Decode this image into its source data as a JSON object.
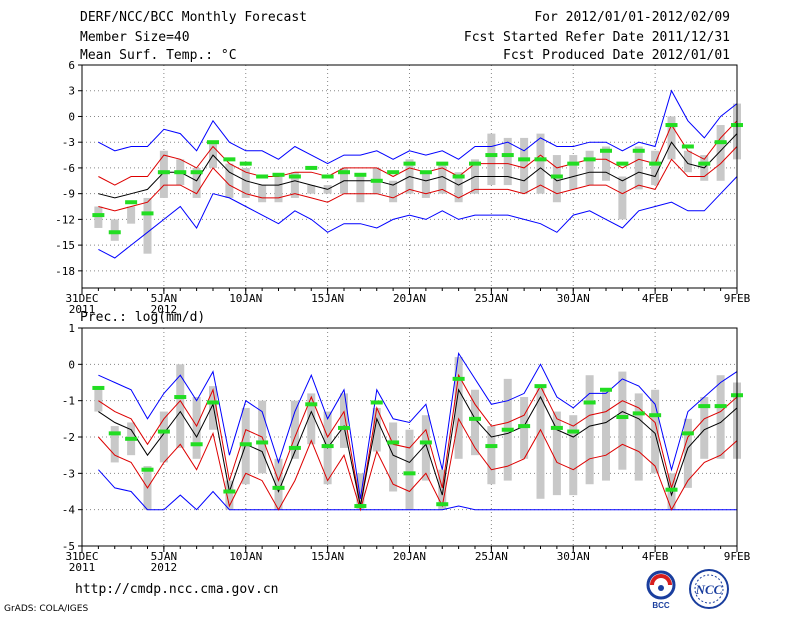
{
  "header": {
    "title": "DERF/NCC/BCC Monthly Forecast",
    "member_size": "Member Size=40",
    "for_range": "For 2012/01/01-2012/02/09",
    "started": "Fcst Started Refer Date 2011/12/31",
    "produced": "Fcst Produced Date 2012/01/01"
  },
  "footer": {
    "url": "http://cmdp.ncc.cma.gov.cn",
    "credit": "GrADS: COLA/IGES",
    "logo_left_text": "BCC",
    "logo_right_text": "NCC"
  },
  "colors": {
    "envelope": "#0000ff",
    "ensemble": "#dd0000",
    "mean": "#000000",
    "observed": "#22dd22",
    "bar": "#c8c8c8",
    "grid": "#888888"
  },
  "chart_data": [
    {
      "type": "line",
      "title": "Mean Surf. Temp.: °C",
      "ylim": [
        -20,
        6
      ],
      "yticks": [
        6,
        3,
        0,
        -3,
        -6,
        -9,
        -12,
        -15,
        -18
      ],
      "xticks": [
        {
          "day": 0,
          "label": "31DEC",
          "label2": "2011"
        },
        {
          "day": 5,
          "label": "5JAN",
          "label2": "2012"
        },
        {
          "day": 10,
          "label": "10JAN",
          "label2": ""
        },
        {
          "day": 15,
          "label": "15JAN",
          "label2": ""
        },
        {
          "day": 20,
          "label": "20JAN",
          "label2": ""
        },
        {
          "day": 25,
          "label": "25JAN",
          "label2": ""
        },
        {
          "day": 30,
          "label": "30JAN",
          "label2": ""
        },
        {
          "day": 35,
          "label": "4FEB",
          "label2": ""
        },
        {
          "day": 40,
          "label": "9FEB",
          "label2": ""
        }
      ],
      "days": [
        1,
        2,
        3,
        4,
        5,
        6,
        7,
        8,
        9,
        10,
        11,
        12,
        13,
        14,
        15,
        16,
        17,
        18,
        19,
        20,
        21,
        22,
        23,
        24,
        25,
        26,
        27,
        28,
        29,
        30,
        31,
        32,
        33,
        34,
        35,
        36,
        37,
        38,
        39,
        40
      ],
      "upper": [
        -3,
        -4,
        -3.5,
        -3.5,
        -1.5,
        -2,
        -4,
        -0.5,
        -3,
        -4,
        -4,
        -5,
        -3.5,
        -4.5,
        -5.5,
        -4.5,
        -4.5,
        -4,
        -5,
        -4,
        -4.5,
        -4,
        -5,
        -3.5,
        -3.5,
        -3,
        -4,
        -2.5,
        -3.5,
        -3.5,
        -3,
        -3,
        -4,
        -3,
        -3.5,
        3,
        -0.5,
        -2.5,
        0,
        1.5
      ],
      "lower": [
        -15.5,
        -16.5,
        -15,
        -13.5,
        -12,
        -10.5,
        -13,
        -9,
        -9.5,
        -10.5,
        -11.5,
        -12.5,
        -11,
        -12,
        -13.5,
        -12.5,
        -12.5,
        -13,
        -12,
        -11.5,
        -12,
        -11,
        -12,
        -11.5,
        -11.5,
        -11.5,
        -12,
        -12.5,
        -13.5,
        -11.5,
        -11,
        -12,
        -13,
        -11,
        -10.5,
        -10,
        -11,
        -11,
        -9,
        -7
      ],
      "ens_upper": [
        -7,
        -8,
        -7,
        -7,
        -4.5,
        -5,
        -6,
        -3.5,
        -5.5,
        -6.5,
        -7,
        -7,
        -6.5,
        -6.5,
        -7,
        -6,
        -6,
        -6,
        -7,
        -6,
        -6.5,
        -6,
        -7,
        -5.5,
        -5.5,
        -5.5,
        -6,
        -4.5,
        -6,
        -5.5,
        -5,
        -5,
        -6,
        -5,
        -5.5,
        -1,
        -4,
        -5,
        -2.5,
        -0.5
      ],
      "ens_lower": [
        -10.5,
        -11,
        -10.5,
        -10,
        -8,
        -8,
        -9,
        -6,
        -8,
        -9,
        -9.5,
        -9.5,
        -9,
        -9.5,
        -10,
        -9,
        -9,
        -9,
        -9.5,
        -8.5,
        -9,
        -8.5,
        -9.5,
        -8.5,
        -8.5,
        -8.5,
        -9,
        -8,
        -9,
        -8.5,
        -8,
        -8,
        -9,
        -8,
        -8.5,
        -5,
        -7,
        -7,
        -5.5,
        -3.5
      ],
      "mean": [
        -9,
        -9.5,
        -9,
        -8.5,
        -6.5,
        -6.5,
        -7.5,
        -4.5,
        -6.5,
        -7.5,
        -8,
        -8,
        -7.5,
        -8,
        -8.5,
        -7.5,
        -7.5,
        -7.5,
        -8,
        -7,
        -7.5,
        -7,
        -8,
        -7,
        -7,
        -7,
        -7.5,
        -6,
        -7.5,
        -7,
        -6.5,
        -6.5,
        -7.5,
        -6.5,
        -7,
        -3,
        -5.5,
        -6,
        -4,
        -2
      ],
      "bar_top": [
        -10.5,
        -12,
        -10.5,
        -9.5,
        -4,
        -5,
        -6,
        -3,
        -5.5,
        -6,
        -8,
        -7,
        -6.5,
        -8,
        -8,
        -6,
        -7,
        -6,
        -7.5,
        -5,
        -6.5,
        -5.5,
        -6.5,
        -5,
        -2,
        -2.5,
        -2.5,
        -2,
        -4.5,
        -4.5,
        -4,
        -3.5,
        -7,
        -3.5,
        -4,
        0,
        -4,
        -4.5,
        -1,
        1.5
      ],
      "bar_bottom": [
        -13,
        -14.5,
        -12.5,
        -16,
        -9.5,
        -8,
        -9.5,
        -6,
        -9.5,
        -9.5,
        -10,
        -10,
        -9.5,
        -9,
        -9,
        -9,
        -10,
        -9,
        -10,
        -9,
        -9.5,
        -9,
        -10,
        -9,
        -8,
        -8,
        -9,
        -9,
        -10,
        -8.5,
        -8,
        -7.5,
        -12,
        -8.5,
        -8,
        -5,
        -6.5,
        -7.5,
        -7.5,
        -5
      ],
      "observed": [
        -11.5,
        -13.5,
        -10,
        -11.3,
        -6.5,
        -6.5,
        -6.5,
        -3,
        -5,
        -5.5,
        -7,
        -6.8,
        -7,
        -6,
        -7,
        -6.5,
        -6.8,
        -7.5,
        -6.5,
        -5.5,
        -6.5,
        -5.5,
        -7,
        -5.5,
        -4.5,
        -4.5,
        -5,
        -5,
        -7,
        -5.5,
        -5,
        -4,
        -5.5,
        -4,
        -5.5,
        -1,
        -3.5,
        -5.5,
        -3,
        -1
      ]
    },
    {
      "type": "line",
      "title": "Prec.: log(mm/d)",
      "ylim": [
        -5,
        1
      ],
      "yticks": [
        1,
        0,
        -1,
        -2,
        -3,
        -4,
        -5
      ],
      "xticks": [
        {
          "day": 0,
          "label": "31DEC",
          "label2": "2011"
        },
        {
          "day": 5,
          "label": "5JAN",
          "label2": "2012"
        },
        {
          "day": 10,
          "label": "10JAN",
          "label2": ""
        },
        {
          "day": 15,
          "label": "15JAN",
          "label2": ""
        },
        {
          "day": 20,
          "label": "20JAN",
          "label2": ""
        },
        {
          "day": 25,
          "label": "25JAN",
          "label2": ""
        },
        {
          "day": 30,
          "label": "30JAN",
          "label2": ""
        },
        {
          "day": 35,
          "label": "4FEB",
          "label2": ""
        },
        {
          "day": 40,
          "label": "9FEB",
          "label2": ""
        }
      ],
      "days": [
        1,
        2,
        3,
        4,
        5,
        6,
        7,
        8,
        9,
        10,
        11,
        12,
        13,
        14,
        15,
        16,
        17,
        18,
        19,
        20,
        21,
        22,
        23,
        24,
        25,
        26,
        27,
        28,
        29,
        30,
        31,
        32,
        33,
        34,
        35,
        36,
        37,
        38,
        39,
        40
      ],
      "upper": [
        -0.3,
        -0.5,
        -0.7,
        -1.5,
        -0.8,
        -0.3,
        -1,
        -0.2,
        -2.5,
        -1,
        -1.3,
        -2.7,
        -1.3,
        -0.3,
        -1.5,
        -0.7,
        -3.7,
        -0.7,
        -1.5,
        -1.6,
        -1.1,
        -2.9,
        0.3,
        -0.4,
        -1.1,
        -1,
        -0.8,
        0,
        -0.9,
        -1.2,
        -0.8,
        -0.8,
        -0.4,
        -0.6,
        -1.1,
        -2.9,
        -1.3,
        -0.9,
        -0.5,
        -0.2
      ],
      "lower": [
        -2.9,
        -3.4,
        -3.5,
        -4,
        -4,
        -3.6,
        -4,
        -3.5,
        -4,
        -4,
        -4,
        -4,
        -4,
        -4,
        -4,
        -4,
        -4,
        -4,
        -4,
        -4,
        -4,
        -4,
        -3.9,
        -4,
        -4,
        -4,
        -4,
        -4,
        -4,
        -4,
        -4,
        -4,
        -4,
        -4,
        -4,
        -4,
        -4,
        -4,
        -4,
        -4
      ],
      "ens_upper": [
        -1,
        -1.3,
        -1.5,
        -2.2,
        -1.5,
        -1,
        -1.7,
        -0.7,
        -3.2,
        -1.8,
        -2,
        -3.2,
        -2,
        -0.9,
        -2,
        -1.3,
        -3.9,
        -1.2,
        -2.2,
        -2.3,
        -1.8,
        -3.4,
        -0.3,
        -1.1,
        -1.7,
        -1.6,
        -1.4,
        -0.6,
        -1.5,
        -1.7,
        -1.4,
        -1.3,
        -1,
        -1.2,
        -1.6,
        -3.4,
        -2,
        -1.5,
        -1.3,
        -0.9
      ],
      "ens_lower": [
        -2,
        -2.5,
        -2.7,
        -3.4,
        -2.7,
        -2.2,
        -2.9,
        -1.9,
        -3.9,
        -3,
        -3.2,
        -4,
        -3.2,
        -2.1,
        -3.2,
        -2.5,
        -4,
        -2.4,
        -3.3,
        -3.5,
        -3,
        -3.9,
        -1.5,
        -2.3,
        -2.9,
        -2.8,
        -2.6,
        -1.8,
        -2.7,
        -2.9,
        -2.6,
        -2.5,
        -2.2,
        -2.4,
        -2.8,
        -4,
        -3.2,
        -2.7,
        -2.5,
        -2.1
      ],
      "mean": [
        -1.3,
        -1.6,
        -1.8,
        -2.5,
        -1.9,
        -1.3,
        -2,
        -1.1,
        -3.5,
        -2.2,
        -2.4,
        -3.5,
        -2.4,
        -1.3,
        -2.3,
        -1.7,
        -3.9,
        -1.5,
        -2.5,
        -2.7,
        -2.2,
        -3.6,
        -0.7,
        -1.5,
        -2,
        -1.9,
        -1.7,
        -0.9,
        -1.8,
        -2,
        -1.7,
        -1.6,
        -1.3,
        -1.5,
        -1.9,
        -3.6,
        -2.3,
        -1.8,
        -1.6,
        -1.2
      ],
      "bar_top": [
        -0.6,
        -1.7,
        -1.6,
        -2.8,
        -1.3,
        0,
        -0.9,
        -0.6,
        -3.2,
        -1.2,
        -1,
        -2.6,
        -1,
        -0.8,
        -1.3,
        -0.8,
        -3,
        -1.2,
        -1.6,
        -1.8,
        -1.4,
        -2.9,
        0.2,
        -0.7,
        -1.7,
        -0.4,
        -0.9,
        -0.6,
        -1.3,
        -1.4,
        -0.3,
        -0.7,
        -0.2,
        -0.8,
        -0.7,
        -3,
        -1.5,
        -0.9,
        -0.3,
        -0.5
      ],
      "bar_bottom": [
        -1.3,
        -2.7,
        -2.5,
        -4,
        -2.7,
        -2.3,
        -2.6,
        -1.8,
        -4,
        -3.3,
        -3,
        -4,
        -2.6,
        -2.2,
        -3.3,
        -2.3,
        -4,
        -2.4,
        -3.5,
        -4,
        -3.2,
        -4,
        -2.6,
        -2.5,
        -3.3,
        -3.2,
        -2.6,
        -3.7,
        -3.6,
        -3.6,
        -3.3,
        -3.2,
        -2.9,
        -3.2,
        -3,
        -4,
        -3.4,
        -2.6,
        -2.6,
        -2.6
      ],
      "observed": [
        -0.65,
        -1.9,
        -2.05,
        -2.9,
        -1.85,
        -0.9,
        -2.2,
        -1.05,
        -3.5,
        -2.2,
        -2.15,
        -3.4,
        -2.3,
        -1.1,
        -2.25,
        -1.75,
        -3.9,
        -1.05,
        -2.15,
        -3,
        -2.15,
        -3.85,
        -0.4,
        -1.5,
        -2.25,
        -1.8,
        -1.7,
        -0.6,
        -1.75,
        -1.85,
        -1.05,
        -0.7,
        -1.45,
        -1.35,
        -1.4,
        -3.45,
        -1.9,
        -1.15,
        -1.15,
        -0.85
      ]
    }
  ]
}
